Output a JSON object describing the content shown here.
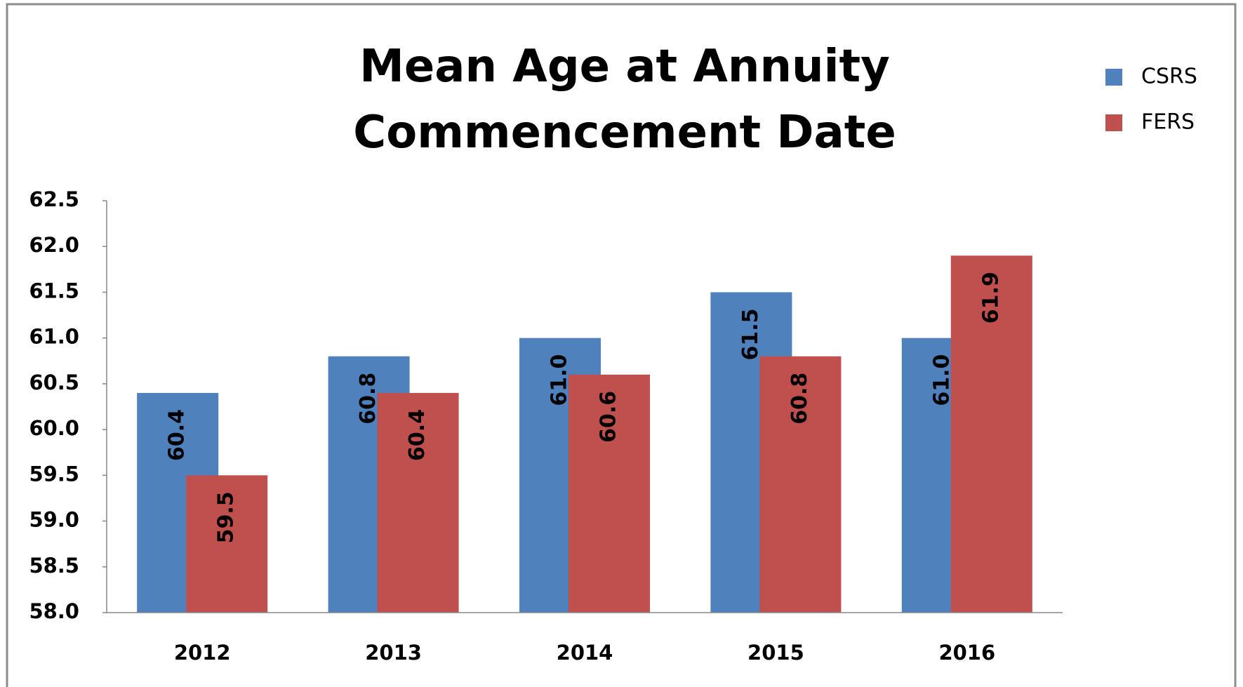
{
  "chart_data": {
    "type": "bar",
    "title": "Mean Age at Annuity Commencement Date",
    "categories": [
      "2012",
      "2013",
      "2014",
      "2015",
      "2016"
    ],
    "series": [
      {
        "name": "CSRS",
        "color": "#4f81bd",
        "values": [
          60.4,
          60.8,
          61,
          61.5,
          61
        ],
        "value_labels": [
          "60.4",
          "60.8",
          "61.0",
          "61.5",
          "61.0"
        ]
      },
      {
        "name": "FERS",
        "color": "#c0504d",
        "values": [
          59.5,
          60.4,
          60.6,
          60.8,
          61.9
        ],
        "value_labels": [
          "59.5",
          "60.4",
          "60.6",
          "60.8",
          "61.9"
        ]
      }
    ],
    "ylim": [
      58,
      62.5
    ],
    "yticks": [
      {
        "value": 58,
        "label": "58.0"
      },
      58.5,
      {
        "value": 59,
        "label": "59.0"
      },
      59.5,
      {
        "value": 60,
        "label": "60.0"
      },
      60.5,
      {
        "value": 61,
        "label": "61.0"
      },
      61.5,
      {
        "value": 62,
        "label": "62.0"
      },
      62.5
    ],
    "legend": "top-right",
    "grid": false
  }
}
